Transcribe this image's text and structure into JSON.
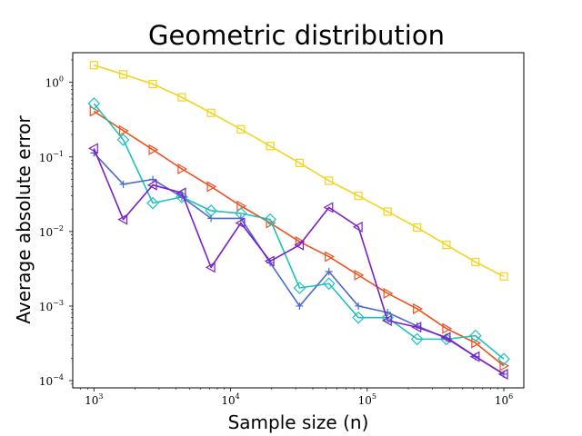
{
  "chart_data": {
    "type": "line",
    "title": "Geometric distribution",
    "xlabel": "Sample size (n)",
    "ylabel": "Average absolute error",
    "xscale": "log",
    "yscale": "log",
    "xlim": [
      700,
      1400000
    ],
    "ylim": [
      8e-05,
      2.5
    ],
    "xticks": [
      {
        "base": "10",
        "exp": "3",
        "value": 1000
      },
      {
        "base": "10",
        "exp": "4",
        "value": 10000
      },
      {
        "base": "10",
        "exp": "5",
        "value": 100000
      },
      {
        "base": "10",
        "exp": "6",
        "value": 1000000
      }
    ],
    "yticks": [
      {
        "base": "10",
        "exp": "0",
        "value": 1
      },
      {
        "base": "10",
        "exp": "−1",
        "value": 0.1
      },
      {
        "base": "10",
        "exp": "−2",
        "value": 0.01
      },
      {
        "base": "10",
        "exp": "−3",
        "value": 0.001
      },
      {
        "base": "10",
        "exp": "−4",
        "value": 0.0001
      }
    ],
    "x": [
      1000,
      1640,
      2700,
      4400,
      7200,
      11900,
      19500,
      32000,
      52500,
      86200,
      141000,
      232000,
      380000,
      620000,
      1000000
    ],
    "series": [
      {
        "name": "yellow-squares",
        "color": "#f5d31c",
        "marker": "square",
        "values": [
          1.7,
          1.28,
          0.95,
          0.63,
          0.39,
          0.235,
          0.14,
          0.083,
          0.048,
          0.03,
          0.0185,
          0.0113,
          0.0066,
          0.0039,
          0.0025
        ]
      },
      {
        "name": "orange-triangles",
        "color": "#f0501e",
        "marker": "triangle-right",
        "values": [
          0.41,
          0.225,
          0.125,
          0.069,
          0.04,
          0.022,
          0.013,
          0.0073,
          0.0046,
          0.0026,
          0.00148,
          0.00092,
          0.0005,
          0.00032,
          0.000158
        ]
      },
      {
        "name": "cyan-diamonds",
        "color": "#1ec0c0",
        "marker": "diamond",
        "values": [
          0.52,
          0.17,
          0.024,
          0.029,
          0.019,
          0.0175,
          0.0145,
          0.00175,
          0.002,
          0.0007,
          0.0007,
          0.00036,
          0.00036,
          0.0004,
          0.000195
        ]
      },
      {
        "name": "blue-plus",
        "color": "#4a6ad0",
        "marker": "plus",
        "values": [
          0.113,
          0.043,
          0.05,
          0.029,
          0.015,
          0.015,
          0.0038,
          0.001,
          0.0029,
          0.001,
          0.00082,
          0.00054,
          0.00037,
          0.00021,
          0.000122
        ]
      },
      {
        "name": "purple-triangles",
        "color": "#7a1ec8",
        "marker": "triangle-left",
        "values": [
          0.13,
          0.0145,
          0.042,
          0.033,
          0.0033,
          0.013,
          0.004,
          0.0066,
          0.021,
          0.0115,
          0.00064,
          0.00052,
          0.00038,
          0.00021,
          0.000122
        ]
      }
    ]
  }
}
